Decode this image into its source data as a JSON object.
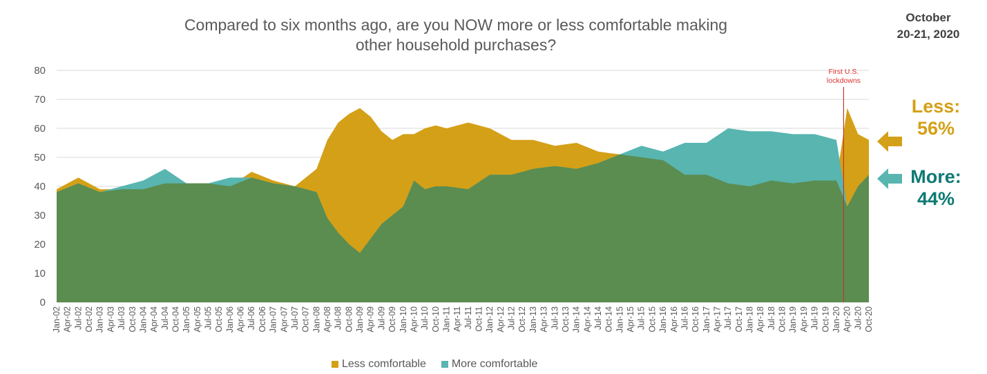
{
  "header": {
    "title_line1": "Compared to six months ago, are you NOW more or less comfortable making",
    "title_line2": "other household purchases?",
    "date_line1": "October",
    "date_line2": "20-21, 2020"
  },
  "callouts": {
    "less_label": "Less:",
    "less_value": "56%",
    "more_label": "More:",
    "more_value": "44%"
  },
  "colors": {
    "less": "#d4a017",
    "more": "#58b5b0",
    "overlap": "#5b8c50",
    "less_text": "#d4a017",
    "more_text": "#0e7a73",
    "lockdown_line": "#c0392b"
  },
  "chart_data": {
    "type": "area",
    "title": "Compared to six months ago, are you NOW more or less comfortable making other household purchases?",
    "ylim": [
      0,
      80
    ],
    "yticks": [
      0,
      10,
      20,
      30,
      40,
      50,
      60,
      70,
      80
    ],
    "grid": true,
    "legend": "bottom",
    "x_tick_labels": [
      "Jan-02",
      "Apr-02",
      "Jul-02",
      "Oct-02",
      "Jan-03",
      "Apr-03",
      "Jul-03",
      "Oct-03",
      "Jan-04",
      "Apr-04",
      "Jul-04",
      "Oct-04",
      "Jan-05",
      "Apr-05",
      "Jul-05",
      "Oct-05",
      "Jan-06",
      "Apr-06",
      "Jul-06",
      "Oct-06",
      "Jan-07",
      "Apr-07",
      "Jul-07",
      "Oct-07",
      "Jan-08",
      "Apr-08",
      "Jul-08",
      "Oct-08",
      "Jan-09",
      "Apr-09",
      "Jul-09",
      "Oct-09",
      "Jan-10",
      "Apr-10",
      "Jul-10",
      "Oct-10",
      "Jan-11",
      "Apr-11",
      "Jul-11",
      "Oct-11",
      "Jan-12",
      "Apr-12",
      "Jul-12",
      "Oct-12",
      "Jan-13",
      "Apr-13",
      "Jul-13",
      "Oct-13",
      "Jan-14",
      "Apr-14",
      "Jul-14",
      "Oct-14",
      "Jan-15",
      "Apr-15",
      "Jul-15",
      "Oct-15",
      "Jan-16",
      "Apr-16",
      "Jul-16",
      "Oct-16",
      "Jan-17",
      "Apr-17",
      "Jul-17",
      "Oct-17",
      "Jan-18",
      "Apr-18",
      "Jul-18",
      "Oct-18",
      "Jan-19",
      "Apr-19",
      "Jul-19",
      "Oct-19",
      "Jan-20",
      "Apr-20",
      "Jul-20",
      "Oct-20"
    ],
    "x": [
      "Jan-02",
      "Jul-02",
      "Jan-03",
      "Jul-03",
      "Jan-04",
      "Jul-04",
      "Jan-05",
      "Jul-05",
      "Jan-06",
      "Jul-06",
      "Jan-07",
      "Jul-07",
      "Jan-08",
      "Apr-08",
      "Jul-08",
      "Oct-08",
      "Jan-09",
      "Apr-09",
      "Jul-09",
      "Oct-09",
      "Jan-10",
      "Apr-10",
      "Jul-10",
      "Oct-10",
      "Jan-11",
      "Jul-11",
      "Jan-12",
      "Jul-12",
      "Jan-13",
      "Jul-13",
      "Jan-14",
      "Jul-14",
      "Jan-15",
      "Jul-15",
      "Jan-16",
      "Jul-16",
      "Jan-17",
      "Jul-17",
      "Jan-18",
      "Jul-18",
      "Jan-19",
      "Jul-19",
      "Jan-20",
      "Apr-20",
      "Jul-20",
      "Oct-20"
    ],
    "series": [
      {
        "name": "Less comfortable",
        "values": [
          39,
          43,
          39,
          39,
          39,
          41,
          41,
          41,
          40,
          45,
          42,
          40,
          46,
          56,
          62,
          65,
          67,
          64,
          59,
          56,
          58,
          58,
          60,
          61,
          60,
          62,
          60,
          56,
          56,
          54,
          55,
          52,
          51,
          50,
          49,
          44,
          44,
          41,
          40,
          42,
          41,
          42,
          42,
          67,
          58,
          56
        ]
      },
      {
        "name": "More comfortable",
        "values": [
          38,
          41,
          38,
          40,
          42,
          46,
          41,
          41,
          43,
          43,
          41,
          40,
          38,
          29,
          24,
          20,
          17,
          22,
          27,
          30,
          33,
          42,
          39,
          40,
          40,
          39,
          44,
          44,
          46,
          47,
          46,
          48,
          51,
          54,
          52,
          55,
          55,
          60,
          59,
          59,
          58,
          58,
          56,
          33,
          40,
          44
        ]
      }
    ],
    "annotation": {
      "text_line1": "First U.S.",
      "text_line2": "lockdowns",
      "x": "Mar-20"
    }
  },
  "legend": {
    "less": "Less comfortable",
    "more": "More comfortable"
  }
}
